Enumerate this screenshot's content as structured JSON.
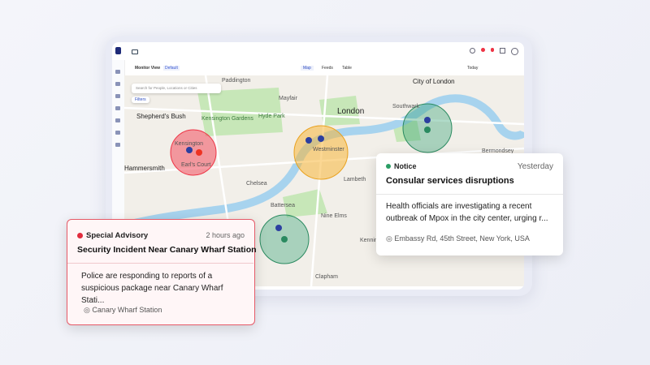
{
  "app": {
    "toolbar": {
      "view": "Monitor View",
      "view_preset": "Default",
      "tabs": [
        "Map",
        "Feeds",
        "Table"
      ],
      "date": "Today"
    },
    "search": {
      "placeholder": "Search for People, Locations or Cities",
      "filters": "Filters"
    }
  },
  "map": {
    "labels": [
      "City of London",
      "London",
      "Shepherd's Bush",
      "Kensington",
      "Westminster",
      "Hammersmith",
      "Clapham",
      "Chelsea",
      "Battersea",
      "Lambeth",
      "Nine Elms",
      "Southwark",
      "Bermondsey",
      "Paddington",
      "Mayfair",
      "Hyde Park",
      "Kensington Gardens",
      "Earl's Court",
      "Kennington"
    ]
  },
  "notice_card": {
    "tag": "Notice",
    "time": "Yesterday",
    "title": "Consular services disruptions",
    "body": "Health officials are investigating a recent outbreak of Mpox in the city center, urging r...",
    "location": "Embassy Rd, 45th Street, New York, USA"
  },
  "advisory_card": {
    "tag": "Special Advisory",
    "time": "2 hours ago",
    "title": "Security Incident Near Canary Wharf Station",
    "body": "Police are responding to reports of a suspicious package near Canary Wharf Stati...",
    "location": "Canary Wharf Station"
  }
}
